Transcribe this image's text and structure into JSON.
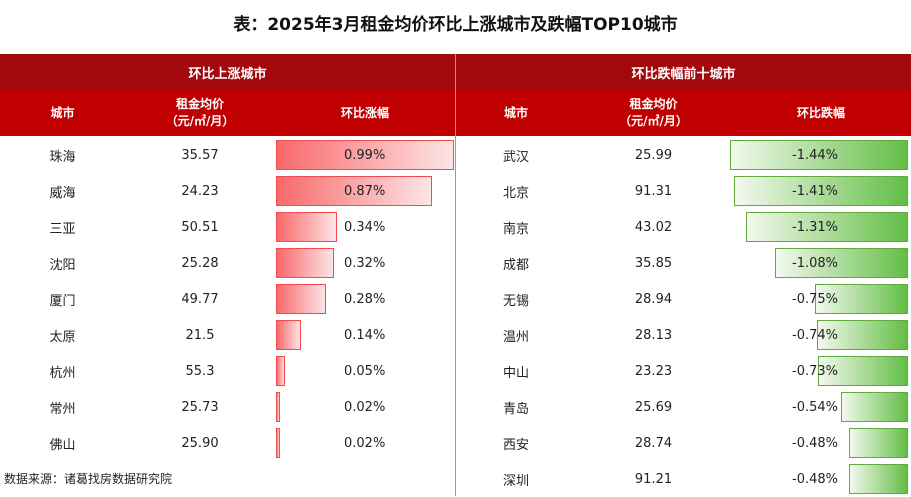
{
  "title": "表：2025年3月租金均价环比上涨城市及跌幅TOP10城市",
  "source": "数据来源：诸葛找房数据研究院",
  "colors": {
    "header_dark": "#a3080c",
    "header_red": "#c00000",
    "up_bar": "#f8696b",
    "down_bar": "#63be46"
  },
  "left": {
    "section_title": "环比上涨城市",
    "col_city": "城市",
    "col_rent_line1": "租金均价",
    "col_rent_line2": "（元/㎡/月）",
    "col_change": "环比涨幅"
  },
  "right": {
    "section_title": "环比跌幅前十城市",
    "col_city": "城市",
    "col_rent_line1": "租金均价",
    "col_rent_line2": "（元/㎡/月）",
    "col_change": "环比跌幅"
  },
  "chart_data": [
    {
      "type": "table",
      "title": "环比上涨城市",
      "columns": [
        "城市",
        "租金均价（元/㎡/月）",
        "环比涨幅"
      ],
      "rows": [
        {
          "city": "珠海",
          "rent": "35.57",
          "change": 0.99,
          "label": "0.99%"
        },
        {
          "city": "威海",
          "rent": "24.23",
          "change": 0.87,
          "label": "0.87%"
        },
        {
          "city": "三亚",
          "rent": "50.51",
          "change": 0.34,
          "label": "0.34%"
        },
        {
          "city": "沈阳",
          "rent": "25.28",
          "change": 0.32,
          "label": "0.32%"
        },
        {
          "city": "厦门",
          "rent": "49.77",
          "change": 0.28,
          "label": "0.28%"
        },
        {
          "city": "太原",
          "rent": "21.5",
          "change": 0.14,
          "label": "0.14%"
        },
        {
          "city": "杭州",
          "rent": "55.3",
          "change": 0.05,
          "label": "0.05%"
        },
        {
          "city": "常州",
          "rent": "25.73",
          "change": 0.02,
          "label": "0.02%"
        },
        {
          "city": "佛山",
          "rent": "25.90",
          "change": 0.02,
          "label": "0.02%"
        }
      ]
    },
    {
      "type": "table",
      "title": "环比跌幅前十城市",
      "columns": [
        "城市",
        "租金均价（元/㎡/月）",
        "环比跌幅"
      ],
      "rows": [
        {
          "city": "武汉",
          "rent": "25.99",
          "change": -1.44,
          "label": "-1.44%"
        },
        {
          "city": "北京",
          "rent": "91.31",
          "change": -1.41,
          "label": "-1.41%"
        },
        {
          "city": "南京",
          "rent": "43.02",
          "change": -1.31,
          "label": "-1.31%"
        },
        {
          "city": "成都",
          "rent": "35.85",
          "change": -1.08,
          "label": "-1.08%"
        },
        {
          "city": "无锡",
          "rent": "28.94",
          "change": -0.75,
          "label": "-0.75%"
        },
        {
          "city": "温州",
          "rent": "28.13",
          "change": -0.74,
          "label": "-0.74%"
        },
        {
          "city": "中山",
          "rent": "23.23",
          "change": -0.73,
          "label": "-0.73%"
        },
        {
          "city": "青岛",
          "rent": "25.69",
          "change": -0.54,
          "label": "-0.54%"
        },
        {
          "city": "西安",
          "rent": "28.74",
          "change": -0.48,
          "label": "-0.48%"
        },
        {
          "city": "深圳",
          "rent": "91.21",
          "change": -0.48,
          "label": "-0.48%"
        }
      ]
    }
  ]
}
